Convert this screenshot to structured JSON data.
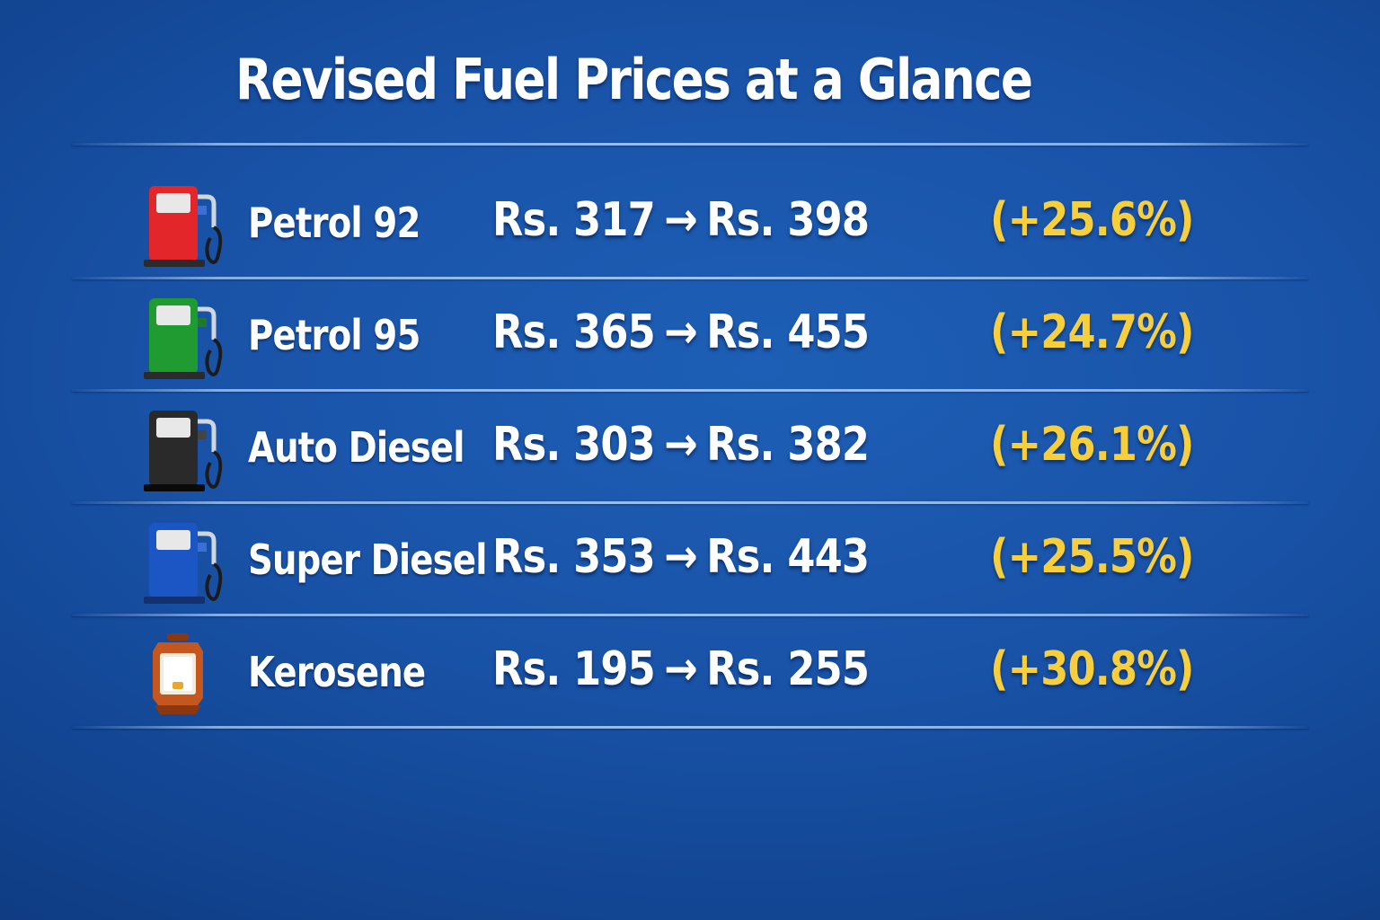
{
  "title": "Revised Fuel Prices at a Glance",
  "accent_color": "#f7cf3d",
  "fuels": [
    {
      "name": "Petrol 92",
      "old_price": "Rs. 317",
      "new_price": "Rs. 398",
      "change": "(+25.6%)",
      "icon": "fuel-pump-icon",
      "icon_color": "#e2262a"
    },
    {
      "name": "Petrol 95",
      "old_price": "Rs. 365",
      "new_price": "Rs. 455",
      "change": "(+24.7%)",
      "icon": "fuel-pump-icon",
      "icon_color": "#1f9b32"
    },
    {
      "name": "Auto Diesel",
      "old_price": "Rs. 303",
      "new_price": "Rs. 382",
      "change": "(+26.1%)",
      "icon": "fuel-pump-icon",
      "icon_color": "#2a2a2a"
    },
    {
      "name": "Super Diesel",
      "old_price": "Rs. 353",
      "new_price": "Rs. 443",
      "change": "(+25.5%)",
      "icon": "fuel-pump-icon",
      "icon_color": "#1c55c4"
    },
    {
      "name": "Kerosene",
      "old_price": "Rs. 195",
      "new_price": "Rs. 255",
      "change": "(+30.8%)",
      "icon": "lantern-icon",
      "icon_color": "#c4561f"
    }
  ],
  "arrow": "→"
}
